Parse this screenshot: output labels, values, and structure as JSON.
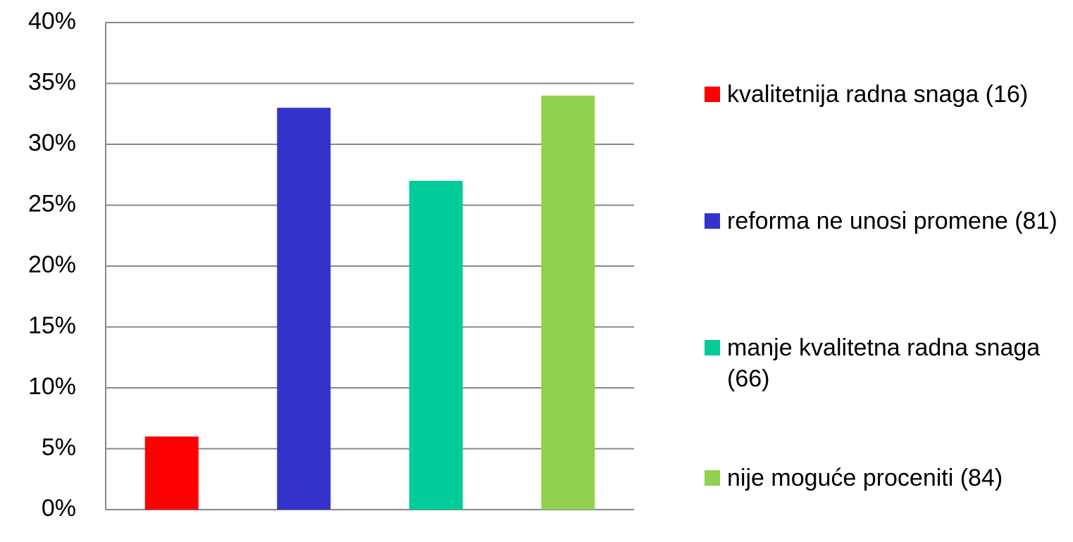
{
  "chart_data": {
    "type": "bar",
    "categories": [
      null
    ],
    "series": [
      {
        "name": "kvalitetnija radna snaga (16)",
        "color": "#ff0000",
        "values": [
          6
        ]
      },
      {
        "name": "reforma ne unosi promene (81)",
        "color": "#3333cc",
        "values": [
          33
        ]
      },
      {
        "name": "manje kvalitetna radna snaga (66)",
        "color": "#00cc99",
        "values": [
          27
        ]
      },
      {
        "name": "nije moguće proceniti (84)",
        "color": "#92d050",
        "values": [
          34
        ]
      }
    ],
    "ylim": [
      0,
      40
    ],
    "yticks": [
      {
        "value": 0,
        "label": "0%"
      },
      {
        "value": 5,
        "label": "5%"
      },
      {
        "value": 10,
        "label": "10%"
      },
      {
        "value": 15,
        "label": "15%"
      },
      {
        "value": 20,
        "label": "20%"
      },
      {
        "value": 25,
        "label": "25%"
      },
      {
        "value": 30,
        "label": "30%"
      },
      {
        "value": 35,
        "label": "35%"
      },
      {
        "value": 40,
        "label": "40%"
      }
    ],
    "grid": true,
    "legend": "right"
  }
}
